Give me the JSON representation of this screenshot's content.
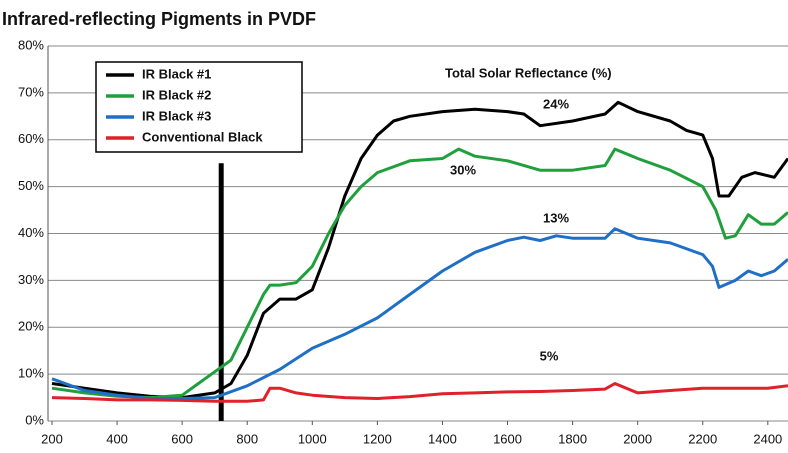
{
  "chart_data": {
    "type": "line",
    "title": "Infrared-reflecting Pigments in PVDF",
    "annotation_title": "Total Solar Reflectance (%)",
    "annotations": [
      "24%",
      "30%",
      "13%",
      "5%"
    ],
    "xlim": [
      200,
      2462
    ],
    "xticks": [
      200,
      400,
      600,
      800,
      1000,
      1200,
      1400,
      1600,
      1800,
      2000,
      2200,
      2400
    ],
    "ylim": [
      0,
      80
    ],
    "yticks": [
      {
        "value": 0,
        "label": "0%"
      },
      {
        "value": 10,
        "label": "10%"
      },
      {
        "value": 20,
        "label": "20%"
      },
      {
        "value": 30,
        "label": "30%"
      },
      {
        "value": 40,
        "label": "40%"
      },
      {
        "value": 50,
        "label": "50%"
      },
      {
        "value": 60,
        "label": "60%"
      },
      {
        "value": 70,
        "label": "70%"
      },
      {
        "value": 80,
        "label": "80%"
      }
    ],
    "grid": true,
    "legend": "upper left",
    "vertical_line": {
      "x": 720,
      "ylim": [
        0,
        55
      ],
      "color": "#000000"
    },
    "series": [
      {
        "name": "IR Black #1",
        "color": "#000000",
        "x": [
          200,
          300,
          400,
          500,
          600,
          700,
          750,
          800,
          850,
          900,
          950,
          1000,
          1050,
          1100,
          1150,
          1200,
          1250,
          1300,
          1400,
          1500,
          1600,
          1650,
          1700,
          1800,
          1900,
          1940,
          2000,
          2100,
          2150,
          2200,
          2230,
          2250,
          2280,
          2320,
          2360,
          2420,
          2462
        ],
        "values": [
          8,
          7,
          6,
          5.3,
          5,
          6,
          8,
          14,
          23,
          26,
          26,
          28,
          37,
          48,
          56,
          61,
          64,
          65,
          66,
          66.5,
          66,
          65.5,
          63,
          64,
          65.5,
          68,
          66,
          64,
          62,
          61,
          56,
          48,
          48,
          52,
          53,
          52,
          56
        ]
      },
      {
        "name": "IR Black #2",
        "color": "#1fa03c",
        "x": [
          200,
          300,
          400,
          500,
          600,
          650,
          700,
          750,
          800,
          850,
          870,
          900,
          950,
          1000,
          1050,
          1100,
          1150,
          1200,
          1300,
          1400,
          1450,
          1500,
          1600,
          1700,
          1800,
          1900,
          1930,
          2000,
          2100,
          2200,
          2240,
          2270,
          2300,
          2340,
          2380,
          2420,
          2462
        ],
        "values": [
          7,
          6,
          5.3,
          5,
          5.5,
          8,
          10.5,
          13,
          20,
          27,
          29,
          29,
          29.5,
          33,
          40,
          46,
          50,
          53,
          55.5,
          56,
          58,
          56.5,
          55.5,
          53.5,
          53.5,
          54.5,
          58,
          56,
          53.5,
          50,
          45,
          39,
          39.5,
          44,
          42,
          42,
          44.5
        ]
      },
      {
        "name": "IR Black #3",
        "color": "#1f6fc6",
        "x": [
          200,
          300,
          400,
          500,
          600,
          700,
          800,
          900,
          1000,
          1100,
          1200,
          1300,
          1400,
          1500,
          1600,
          1650,
          1700,
          1750,
          1800,
          1900,
          1930,
          2000,
          2100,
          2200,
          2230,
          2250,
          2300,
          2340,
          2380,
          2420,
          2462
        ],
        "values": [
          9,
          6.5,
          5.5,
          4.8,
          4.8,
          5,
          7.5,
          11,
          15.5,
          18.5,
          22,
          27,
          32,
          36,
          38.5,
          39.2,
          38.5,
          39.5,
          39,
          39,
          41,
          39,
          38,
          35.5,
          33,
          28.5,
          30,
          32,
          31,
          32,
          34.5
        ]
      },
      {
        "name": "Conventional Black",
        "color": "#e0202a",
        "x": [
          200,
          300,
          400,
          500,
          600,
          700,
          800,
          850,
          870,
          900,
          950,
          1000,
          1100,
          1200,
          1300,
          1400,
          1500,
          1600,
          1700,
          1800,
          1900,
          1930,
          2000,
          2100,
          2200,
          2300,
          2400,
          2462
        ],
        "values": [
          5,
          4.8,
          4.5,
          4.5,
          4.4,
          4.2,
          4.2,
          4.5,
          7,
          7,
          6,
          5.5,
          5,
          4.8,
          5.2,
          5.8,
          6,
          6.2,
          6.3,
          6.5,
          6.8,
          8,
          6,
          6.5,
          7,
          7,
          7,
          7.5
        ]
      }
    ]
  }
}
